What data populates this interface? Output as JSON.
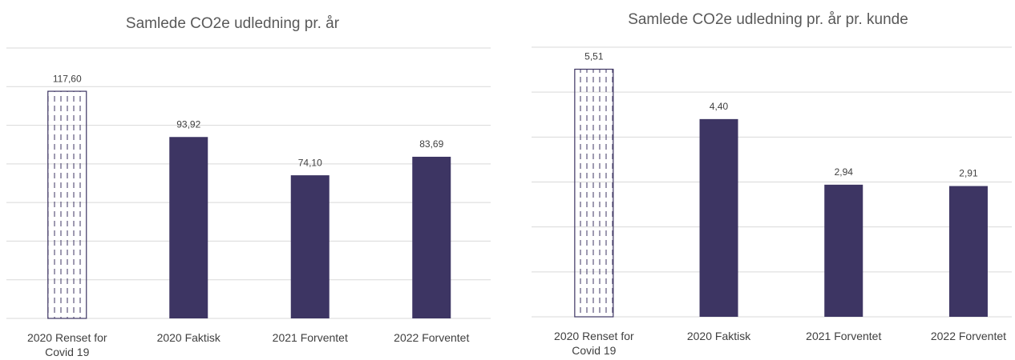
{
  "chart_data": [
    {
      "type": "bar",
      "title": "Samlede CO2e udledning pr. år",
      "categories": [
        "2020 Renset for Covid 19",
        "2020 Faktisk",
        "2021 Forventet",
        "2022 Forventet"
      ],
      "values": [
        117.6,
        93.92,
        74.1,
        83.69
      ],
      "value_labels": [
        "117,60",
        "93,92",
        "74,10",
        "83,69"
      ],
      "hatched": [
        true,
        false,
        false,
        false
      ],
      "color": "#3d3563",
      "ylim": [
        0,
        140
      ],
      "yticks": [
        0,
        20,
        40,
        60,
        80,
        100,
        120,
        140
      ],
      "grid": true
    },
    {
      "type": "bar",
      "title": "Samlede CO2e udledning pr. år pr. kunde",
      "categories": [
        "2020 Renset for Covid 19",
        "2020 Faktisk",
        "2021 Forventet",
        "2022 Forventet"
      ],
      "values": [
        5.51,
        4.4,
        2.94,
        2.91
      ],
      "value_labels": [
        "5,51",
        "4,40",
        "2,94",
        "2,91"
      ],
      "hatched": [
        true,
        false,
        false,
        false
      ],
      "color": "#3d3563",
      "ylim": [
        0,
        6
      ],
      "yticks": [
        0,
        1,
        2,
        3,
        4,
        5,
        6
      ],
      "grid": true
    }
  ]
}
